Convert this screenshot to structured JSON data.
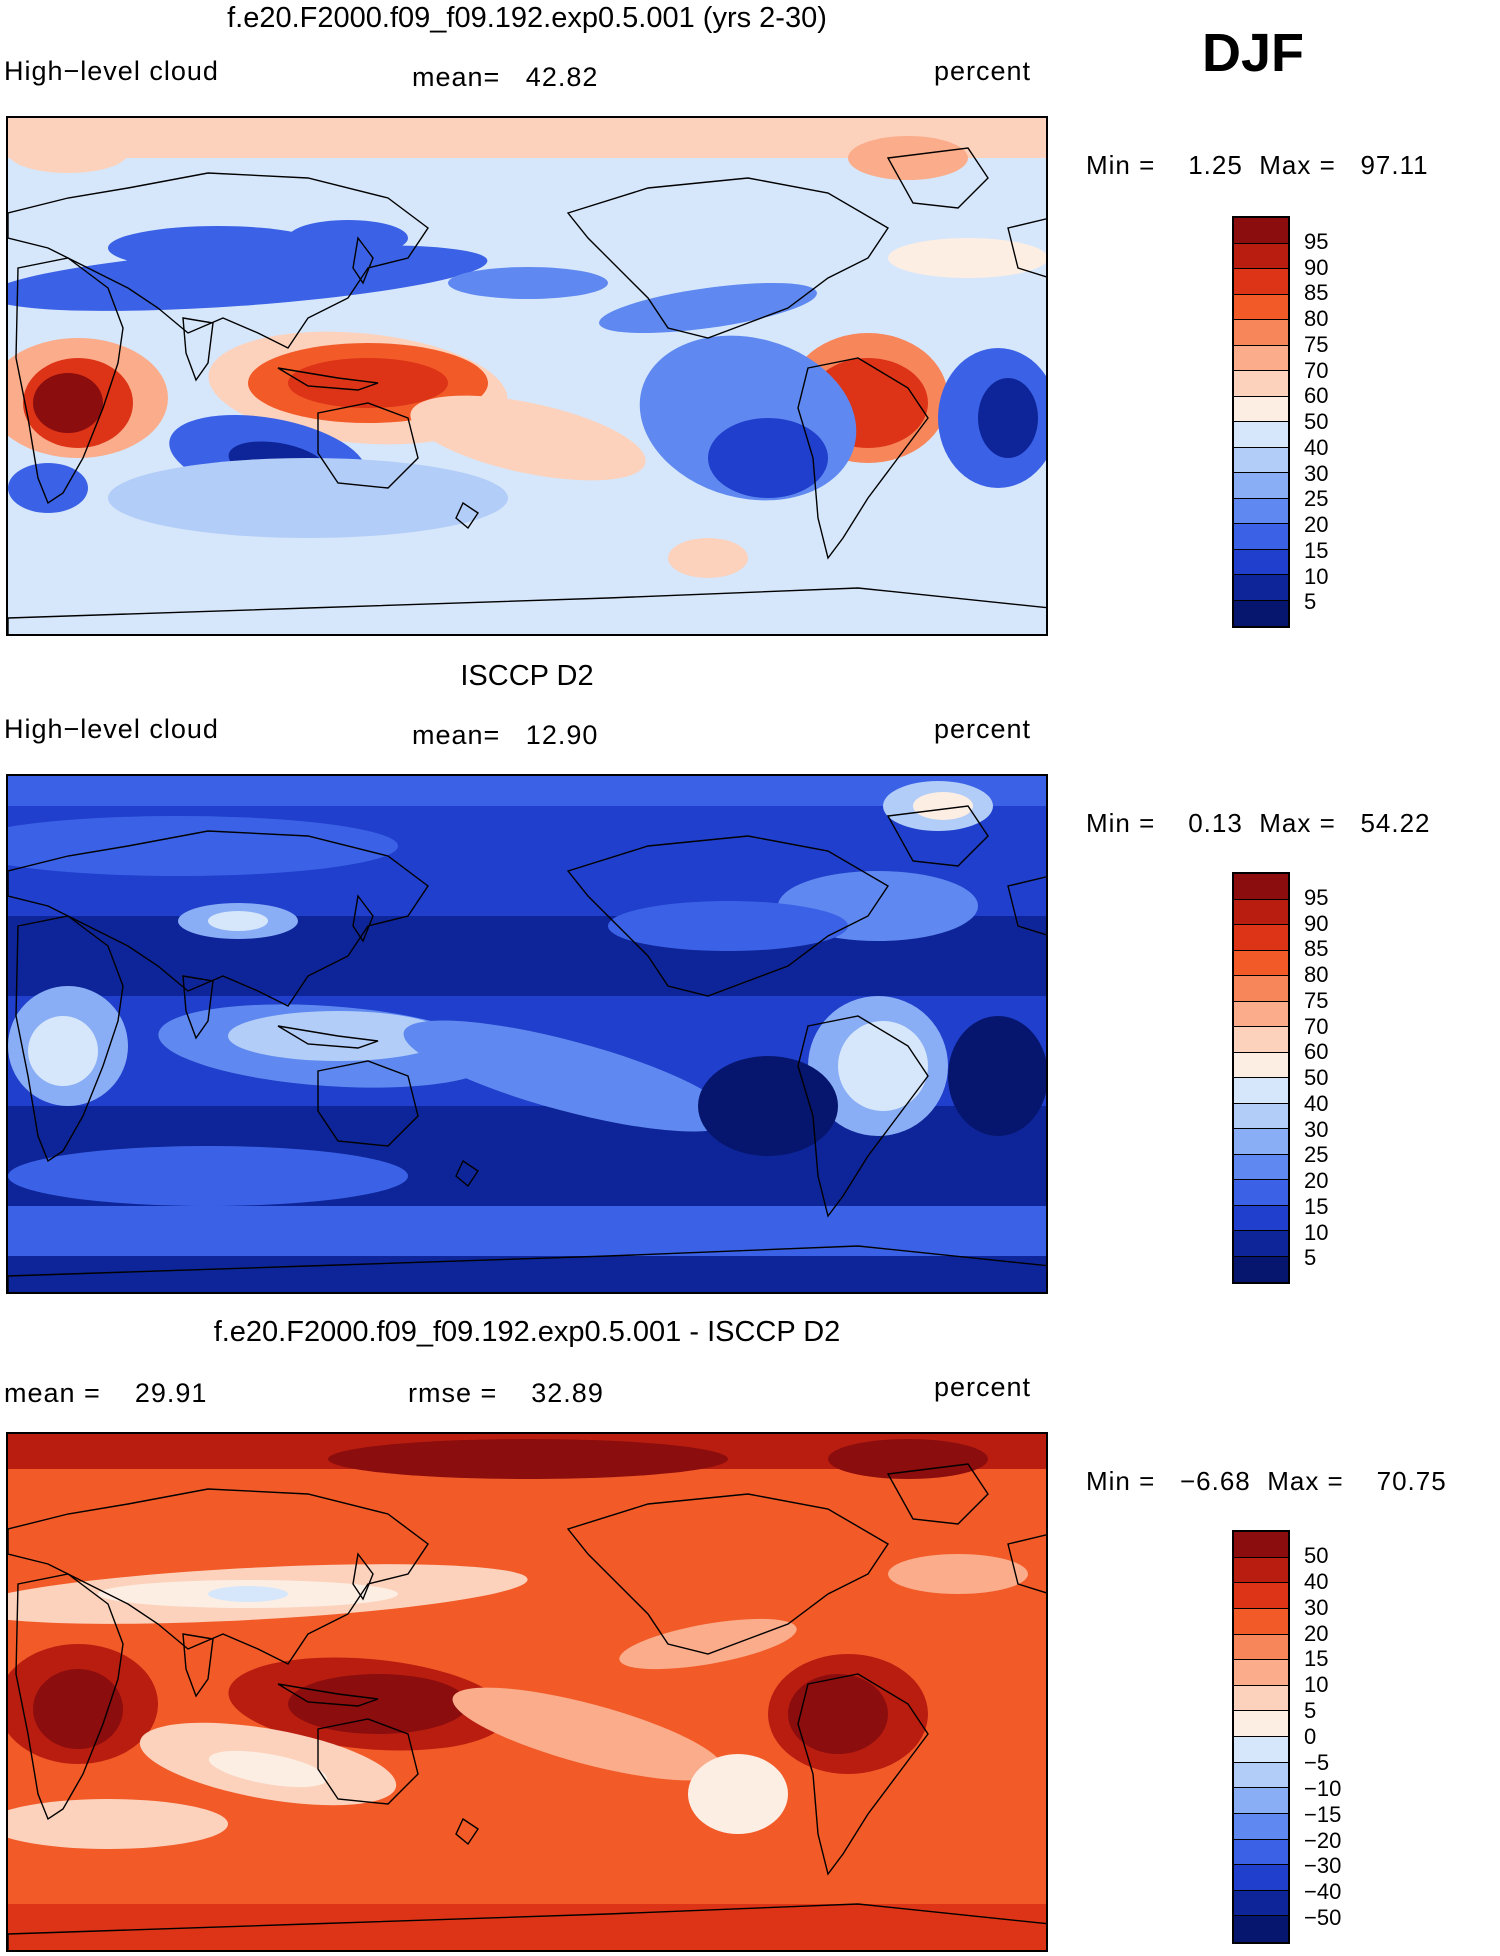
{
  "season_label": "DJF",
  "panels": [
    {
      "title": "f.e20.F2000.f09_f09.192.exp0.5.001 (yrs 2-30)",
      "left_label": "High−level cloud",
      "middle_label": "mean=   42.82",
      "units": "percent",
      "minmax": "Min =    1.25  Max =   97.11",
      "palette": "model",
      "colorbar": {
        "labels": [
          "95",
          "90",
          "85",
          "80",
          "75",
          "70",
          "60",
          "50",
          "40",
          "30",
          "25",
          "20",
          "15",
          "10",
          "5"
        ],
        "colors": [
          "#8b0d0d",
          "#b91d10",
          "#dd3316",
          "#f25a28",
          "#f7865a",
          "#fbac8a",
          "#fcd2bc",
          "#fdeee4",
          "#d6e7fb",
          "#b2cdf8",
          "#8aaef5",
          "#5f89f0",
          "#3b62e6",
          "#1f3fcc",
          "#0e2599",
          "#06166e"
        ]
      }
    },
    {
      "title": "ISCCP D2",
      "left_label": "High−level cloud",
      "middle_label": "mean=   12.90",
      "units": "percent",
      "minmax": "Min =    0.13  Max =   54.22",
      "palette": "obs",
      "colorbar": {
        "labels": [
          "95",
          "90",
          "85",
          "80",
          "75",
          "70",
          "60",
          "50",
          "40",
          "30",
          "25",
          "20",
          "15",
          "10",
          "5"
        ],
        "colors": [
          "#8b0d0d",
          "#b91d10",
          "#dd3316",
          "#f25a28",
          "#f7865a",
          "#fbac8a",
          "#fcd2bc",
          "#fdeee4",
          "#d6e7fb",
          "#b2cdf8",
          "#8aaef5",
          "#5f89f0",
          "#3b62e6",
          "#1f3fcc",
          "#0e2599",
          "#06166e"
        ]
      }
    },
    {
      "title": "f.e20.F2000.f09_f09.192.exp0.5.001 - ISCCP D2",
      "left_label": "mean =    29.91",
      "middle_label": "rmse =    32.89",
      "units": "percent",
      "minmax": "Min =   −6.68  Max =    70.75",
      "palette": "diff",
      "colorbar": {
        "labels": [
          "50",
          "40",
          "30",
          "20",
          "15",
          "10",
          "5",
          "0",
          "−5",
          "−10",
          "−15",
          "−20",
          "−30",
          "−40",
          "−50"
        ],
        "colors": [
          "#8b0d0d",
          "#b91d10",
          "#dd3316",
          "#f25a28",
          "#f7865a",
          "#fbac8a",
          "#fcd2bc",
          "#fdeee4",
          "#d6e7fb",
          "#b2cdf8",
          "#8aaef5",
          "#5f89f0",
          "#3b62e6",
          "#1f3fcc",
          "#0e2599",
          "#06166e"
        ]
      }
    }
  ]
}
